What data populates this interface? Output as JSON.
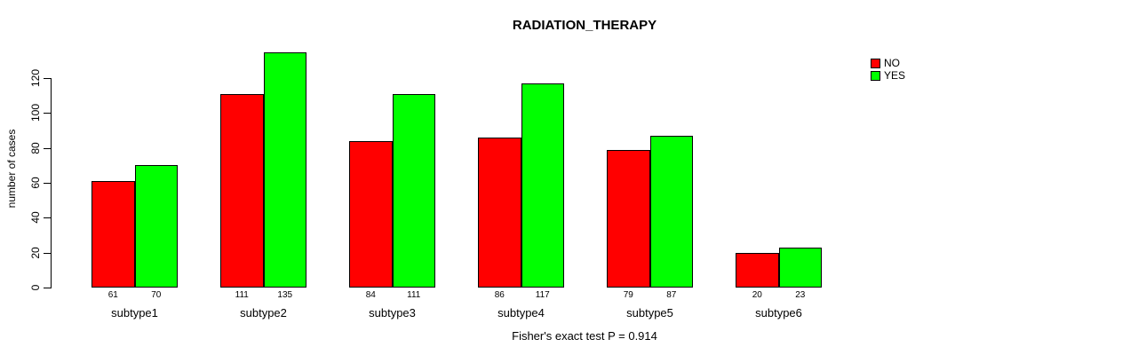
{
  "chart_data": {
    "type": "bar",
    "title": "RADIATION_THERAPY",
    "xlabel": "",
    "ylabel": "number of cases",
    "annotation": "Fisher's exact test P = 0.914",
    "categories": [
      "subtype1",
      "subtype2",
      "subtype3",
      "subtype4",
      "subtype5",
      "subtype6"
    ],
    "series": [
      {
        "name": "NO",
        "color": "#FF0000",
        "values": [
          61,
          111,
          84,
          86,
          79,
          20
        ]
      },
      {
        "name": "YES",
        "color": "#00FF00",
        "values": [
          70,
          135,
          111,
          117,
          87,
          23
        ]
      }
    ],
    "ylim": [
      0,
      120
    ],
    "yticks": [
      0,
      20,
      40,
      60,
      80,
      100,
      120
    ],
    "grid": false,
    "legend_position": "top-right",
    "bar_value_labels": true,
    "colors": {
      "axis": "#000000",
      "background": "#ffffff",
      "text": "#000000"
    }
  }
}
